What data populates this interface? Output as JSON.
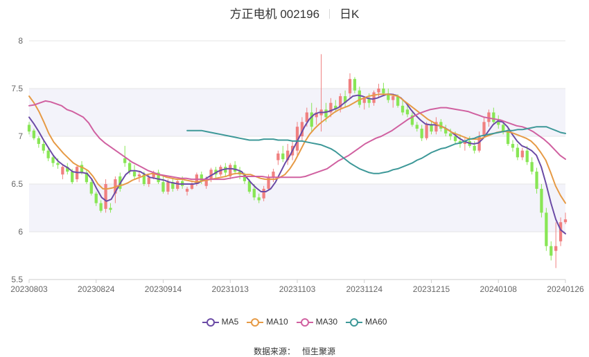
{
  "header": {
    "stock_title": "方正电机 002196",
    "period_label": "日K"
  },
  "footer": {
    "source_label": "数据来源：",
    "source_name": "恒生聚源"
  },
  "colors": {
    "up": "#f08080",
    "down": "#88e655",
    "MA5": "#6a4aa5",
    "MA10": "#e69a45",
    "MA30": "#d060a0",
    "MA60": "#3d9898",
    "band": "#f3f3fa",
    "grid": "#e6e6e6",
    "axis_text": "#666666"
  },
  "chart_data": {
    "type": "candlestick",
    "ylim": [
      5.5,
      8
    ],
    "yticks": [
      "5.5",
      "6",
      "6.5",
      "7",
      "7.5",
      "8"
    ],
    "x_tick_labels": [
      "20230803",
      "20230824",
      "20230914",
      "20231013",
      "20231103",
      "20231124",
      "20231215",
      "20240108",
      "20240126"
    ],
    "candles": [
      {
        "o": 7.12,
        "h": 7.15,
        "l": 7.02,
        "c": 7.05
      },
      {
        "o": 7.06,
        "h": 7.08,
        "l": 6.96,
        "c": 6.98
      },
      {
        "o": 6.98,
        "h": 7.0,
        "l": 6.88,
        "c": 6.92
      },
      {
        "o": 6.92,
        "h": 6.95,
        "l": 6.82,
        "c": 6.85
      },
      {
        "o": 6.85,
        "h": 6.88,
        "l": 6.74,
        "c": 6.77
      },
      {
        "o": 6.78,
        "h": 6.8,
        "l": 6.68,
        "c": 6.72
      },
      {
        "o": 6.72,
        "h": 6.77,
        "l": 6.66,
        "c": 6.7
      },
      {
        "o": 6.6,
        "h": 6.7,
        "l": 6.55,
        "c": 6.68
      },
      {
        "o": 6.68,
        "h": 6.72,
        "l": 6.6,
        "c": 6.63
      },
      {
        "o": 6.63,
        "h": 6.66,
        "l": 6.5,
        "c": 6.52
      },
      {
        "o": 6.55,
        "h": 6.7,
        "l": 6.52,
        "c": 6.68
      },
      {
        "o": 6.7,
        "h": 6.74,
        "l": 6.6,
        "c": 6.62
      },
      {
        "o": 6.62,
        "h": 6.65,
        "l": 6.5,
        "c": 6.52
      },
      {
        "o": 6.52,
        "h": 6.55,
        "l": 6.38,
        "c": 6.4
      },
      {
        "o": 6.4,
        "h": 6.42,
        "l": 6.27,
        "c": 6.3
      },
      {
        "o": 6.3,
        "h": 6.33,
        "l": 6.2,
        "c": 6.22
      },
      {
        "o": 6.24,
        "h": 6.55,
        "l": 6.2,
        "c": 6.5
      },
      {
        "o": 6.25,
        "h": 6.3,
        "l": 6.2,
        "c": 6.23
      },
      {
        "o": 6.4,
        "h": 6.58,
        "l": 6.3,
        "c": 6.55
      },
      {
        "o": 6.58,
        "h": 6.62,
        "l": 6.42,
        "c": 6.45
      },
      {
        "o": 6.77,
        "h": 6.9,
        "l": 6.68,
        "c": 6.72
      },
      {
        "o": 6.72,
        "h": 6.75,
        "l": 6.6,
        "c": 6.63
      },
      {
        "o": 6.63,
        "h": 6.7,
        "l": 6.55,
        "c": 6.58
      },
      {
        "o": 6.58,
        "h": 6.64,
        "l": 6.52,
        "c": 6.6
      },
      {
        "o": 6.6,
        "h": 6.63,
        "l": 6.48,
        "c": 6.5
      },
      {
        "o": 6.5,
        "h": 6.6,
        "l": 6.47,
        "c": 6.57
      },
      {
        "o": 6.57,
        "h": 6.64,
        "l": 6.55,
        "c": 6.62
      },
      {
        "o": 6.62,
        "h": 6.65,
        "l": 6.5,
        "c": 6.52
      },
      {
        "o": 6.52,
        "h": 6.58,
        "l": 6.4,
        "c": 6.42
      },
      {
        "o": 6.42,
        "h": 6.55,
        "l": 6.39,
        "c": 6.52
      },
      {
        "o": 6.52,
        "h": 6.56,
        "l": 6.42,
        "c": 6.45
      },
      {
        "o": 6.45,
        "h": 6.55,
        "l": 6.43,
        "c": 6.53
      },
      {
        "o": 6.53,
        "h": 6.58,
        "l": 6.45,
        "c": 6.48
      },
      {
        "o": 6.42,
        "h": 6.47,
        "l": 6.38,
        "c": 6.45
      },
      {
        "o": 6.45,
        "h": 6.52,
        "l": 6.44,
        "c": 6.5
      },
      {
        "o": 6.5,
        "h": 6.62,
        "l": 6.48,
        "c": 6.6
      },
      {
        "o": 6.6,
        "h": 6.63,
        "l": 6.5,
        "c": 6.53
      },
      {
        "o": 6.48,
        "h": 6.58,
        "l": 6.45,
        "c": 6.55
      },
      {
        "o": 6.55,
        "h": 6.67,
        "l": 6.52,
        "c": 6.65
      },
      {
        "o": 6.65,
        "h": 6.68,
        "l": 6.56,
        "c": 6.6
      },
      {
        "o": 6.6,
        "h": 6.7,
        "l": 6.58,
        "c": 6.68
      },
      {
        "o": 6.68,
        "h": 6.72,
        "l": 6.58,
        "c": 6.62
      },
      {
        "o": 6.58,
        "h": 6.72,
        "l": 6.55,
        "c": 6.7
      },
      {
        "o": 6.7,
        "h": 6.74,
        "l": 6.6,
        "c": 6.63
      },
      {
        "o": 6.63,
        "h": 6.68,
        "l": 6.55,
        "c": 6.6
      },
      {
        "o": 6.6,
        "h": 6.62,
        "l": 6.5,
        "c": 6.53
      },
      {
        "o": 6.53,
        "h": 6.55,
        "l": 6.4,
        "c": 6.42
      },
      {
        "o": 6.45,
        "h": 6.5,
        "l": 6.33,
        "c": 6.36
      },
      {
        "o": 6.36,
        "h": 6.4,
        "l": 6.3,
        "c": 6.33
      },
      {
        "o": 6.35,
        "h": 6.48,
        "l": 6.32,
        "c": 6.45
      },
      {
        "o": 6.45,
        "h": 6.6,
        "l": 6.43,
        "c": 6.57
      },
      {
        "o": 6.57,
        "h": 6.66,
        "l": 6.52,
        "c": 6.63
      },
      {
        "o": 6.75,
        "h": 6.85,
        "l": 6.7,
        "c": 6.82
      },
      {
        "o": 6.82,
        "h": 6.9,
        "l": 6.73,
        "c": 6.76
      },
      {
        "o": 6.75,
        "h": 6.92,
        "l": 6.7,
        "c": 6.85
      },
      {
        "o": 6.8,
        "h": 6.95,
        "l": 6.75,
        "c": 6.9
      },
      {
        "o": 6.85,
        "h": 7.15,
        "l": 6.8,
        "c": 7.1
      },
      {
        "o": 7.0,
        "h": 7.2,
        "l": 6.95,
        "c": 7.15
      },
      {
        "o": 7.15,
        "h": 7.3,
        "l": 7.1,
        "c": 7.25
      },
      {
        "o": 7.25,
        "h": 7.35,
        "l": 7.05,
        "c": 7.1
      },
      {
        "o": 7.2,
        "h": 7.3,
        "l": 7.12,
        "c": 7.25
      },
      {
        "o": 7.22,
        "h": 7.86,
        "l": 7.05,
        "c": 7.28
      },
      {
        "o": 7.28,
        "h": 7.35,
        "l": 7.15,
        "c": 7.2
      },
      {
        "o": 7.25,
        "h": 7.4,
        "l": 7.2,
        "c": 7.35
      },
      {
        "o": 7.32,
        "h": 7.38,
        "l": 7.25,
        "c": 7.28
      },
      {
        "o": 7.3,
        "h": 7.45,
        "l": 7.25,
        "c": 7.42
      },
      {
        "o": 7.42,
        "h": 7.48,
        "l": 7.3,
        "c": 7.35
      },
      {
        "o": 7.45,
        "h": 7.66,
        "l": 7.4,
        "c": 7.6
      },
      {
        "o": 7.6,
        "h": 7.62,
        "l": 7.45,
        "c": 7.48
      },
      {
        "o": 7.48,
        "h": 7.52,
        "l": 7.3,
        "c": 7.33
      },
      {
        "o": 7.35,
        "h": 7.42,
        "l": 7.28,
        "c": 7.4
      },
      {
        "o": 7.4,
        "h": 7.45,
        "l": 7.3,
        "c": 7.35
      },
      {
        "o": 7.35,
        "h": 7.48,
        "l": 7.32,
        "c": 7.46
      },
      {
        "o": 7.46,
        "h": 7.55,
        "l": 7.4,
        "c": 7.5
      },
      {
        "o": 7.5,
        "h": 7.56,
        "l": 7.42,
        "c": 7.45
      },
      {
        "o": 7.45,
        "h": 7.5,
        "l": 7.35,
        "c": 7.38
      },
      {
        "o": 7.38,
        "h": 7.45,
        "l": 7.3,
        "c": 7.42
      },
      {
        "o": 7.42,
        "h": 7.44,
        "l": 7.3,
        "c": 7.32
      },
      {
        "o": 7.32,
        "h": 7.38,
        "l": 7.22,
        "c": 7.25
      },
      {
        "o": 7.28,
        "h": 7.33,
        "l": 7.2,
        "c": 7.23
      },
      {
        "o": 7.22,
        "h": 7.25,
        "l": 7.1,
        "c": 7.12
      },
      {
        "o": 7.12,
        "h": 7.15,
        "l": 7.05,
        "c": 7.08
      },
      {
        "o": 7.08,
        "h": 7.12,
        "l": 6.95,
        "c": 6.98
      },
      {
        "o": 6.98,
        "h": 7.15,
        "l": 6.96,
        "c": 7.12
      },
      {
        "o": 7.12,
        "h": 7.15,
        "l": 7.02,
        "c": 7.05
      },
      {
        "o": 7.05,
        "h": 7.2,
        "l": 7.02,
        "c": 7.15
      },
      {
        "o": 7.15,
        "h": 7.18,
        "l": 7.05,
        "c": 7.08
      },
      {
        "o": 7.08,
        "h": 7.12,
        "l": 7.0,
        "c": 7.03
      },
      {
        "o": 7.03,
        "h": 7.08,
        "l": 6.96,
        "c": 7.0
      },
      {
        "o": 7.0,
        "h": 7.05,
        "l": 6.92,
        "c": 6.95
      },
      {
        "o": 6.95,
        "h": 7.02,
        "l": 6.88,
        "c": 6.92
      },
      {
        "o": 6.92,
        "h": 6.98,
        "l": 6.85,
        "c": 6.95
      },
      {
        "o": 6.95,
        "h": 7.0,
        "l": 6.88,
        "c": 6.9
      },
      {
        "o": 6.9,
        "h": 6.95,
        "l": 6.82,
        "c": 6.85
      },
      {
        "o": 6.85,
        "h": 7.05,
        "l": 6.83,
        "c": 7.0
      },
      {
        "o": 7.0,
        "h": 7.2,
        "l": 6.98,
        "c": 7.15
      },
      {
        "o": 7.15,
        "h": 7.28,
        "l": 7.1,
        "c": 7.25
      },
      {
        "o": 7.25,
        "h": 7.3,
        "l": 7.12,
        "c": 7.15
      },
      {
        "o": 7.15,
        "h": 7.22,
        "l": 7.08,
        "c": 7.12
      },
      {
        "o": 7.12,
        "h": 7.15,
        "l": 7.02,
        "c": 7.05
      },
      {
        "o": 7.05,
        "h": 7.08,
        "l": 6.9,
        "c": 6.92
      },
      {
        "o": 6.92,
        "h": 6.96,
        "l": 6.84,
        "c": 6.88
      },
      {
        "o": 6.88,
        "h": 6.92,
        "l": 6.75,
        "c": 6.78
      },
      {
        "o": 6.78,
        "h": 6.88,
        "l": 6.75,
        "c": 6.85
      },
      {
        "o": 6.85,
        "h": 6.9,
        "l": 6.7,
        "c": 6.73
      },
      {
        "o": 6.73,
        "h": 6.78,
        "l": 6.6,
        "c": 6.63
      },
      {
        "o": 6.63,
        "h": 6.67,
        "l": 6.4,
        "c": 6.45
      },
      {
        "o": 6.45,
        "h": 6.5,
        "l": 6.15,
        "c": 6.2
      },
      {
        "o": 6.2,
        "h": 6.25,
        "l": 5.8,
        "c": 5.85
      },
      {
        "o": 5.85,
        "h": 5.9,
        "l": 5.7,
        "c": 5.75
      },
      {
        "o": 5.8,
        "h": 6.1,
        "l": 5.62,
        "c": 5.85
      },
      {
        "o": 5.9,
        "h": 6.15,
        "l": 5.85,
        "c": 6.1
      },
      {
        "o": 6.1,
        "h": 6.2,
        "l": 6.08,
        "c": 6.13
      }
    ],
    "series": [
      {
        "name": "MA5",
        "values": [
          7.2,
          7.13,
          7.05,
          6.96,
          6.88,
          6.8,
          6.74,
          6.7,
          6.67,
          6.63,
          6.62,
          6.62,
          6.61,
          6.55,
          6.45,
          6.36,
          6.32,
          6.34,
          6.43,
          6.52,
          6.6,
          6.64,
          6.64,
          6.63,
          6.6,
          6.57,
          6.56,
          6.55,
          6.54,
          6.52,
          6.51,
          6.5,
          6.5,
          6.5,
          6.5,
          6.51,
          6.54,
          6.57,
          6.6,
          6.63,
          6.65,
          6.66,
          6.66,
          6.65,
          6.63,
          6.57,
          6.51,
          6.46,
          6.42,
          6.42,
          6.45,
          6.52,
          6.62,
          6.72,
          6.8,
          6.9,
          7.0,
          7.1,
          7.18,
          7.23,
          7.25,
          7.25,
          7.26,
          7.28,
          7.3,
          7.34,
          7.38,
          7.42,
          7.43,
          7.42,
          7.4,
          7.39,
          7.4,
          7.42,
          7.44,
          7.44,
          7.43,
          7.4,
          7.35,
          7.28,
          7.22,
          7.17,
          7.13,
          7.12,
          7.12,
          7.11,
          7.09,
          7.06,
          7.02,
          6.98,
          6.95,
          6.93,
          6.92,
          6.93,
          6.98,
          7.05,
          7.12,
          7.16,
          7.15,
          7.1,
          7.02,
          6.95,
          6.9,
          6.88,
          6.85,
          6.8,
          6.68,
          6.5,
          6.3,
          6.13,
          6.02,
          5.98
        ]
      },
      {
        "name": "MA10",
        "values": [
          7.42,
          7.35,
          7.26,
          7.15,
          7.03,
          6.94,
          6.88,
          6.82,
          6.77,
          6.72,
          6.69,
          6.67,
          6.64,
          6.58,
          6.5,
          6.45,
          6.45,
          6.46,
          6.48,
          6.49,
          6.51,
          6.54,
          6.56,
          6.58,
          6.6,
          6.61,
          6.6,
          6.59,
          6.57,
          6.56,
          6.55,
          6.55,
          6.54,
          6.53,
          6.52,
          6.53,
          6.54,
          6.55,
          6.56,
          6.57,
          6.58,
          6.6,
          6.61,
          6.61,
          6.6,
          6.6,
          6.58,
          6.56,
          6.55,
          6.55,
          6.55,
          6.57,
          6.6,
          6.66,
          6.74,
          6.84,
          6.94,
          7.02,
          7.08,
          7.13,
          7.17,
          7.21,
          7.25,
          7.28,
          7.3,
          7.32,
          7.35,
          7.38,
          7.4,
          7.42,
          7.43,
          7.44,
          7.44,
          7.44,
          7.43,
          7.42,
          7.38,
          7.34,
          7.3,
          7.26,
          7.22,
          7.18,
          7.15,
          7.12,
          7.1,
          7.07,
          7.04,
          7.02,
          7.0,
          6.98,
          6.97,
          6.97,
          6.98,
          7.0,
          7.02,
          7.04,
          7.05,
          7.05,
          7.04,
          7.02,
          7.0,
          6.98,
          6.95,
          6.9,
          6.83,
          6.75,
          6.62,
          6.48,
          6.38,
          6.3
        ]
      },
      {
        "name": "MA30",
        "values": [
          7.32,
          7.33,
          7.35,
          7.37,
          7.36,
          7.34,
          7.32,
          7.28,
          7.26,
          7.23,
          7.2,
          7.14,
          7.05,
          6.98,
          6.93,
          6.89,
          6.85,
          6.81,
          6.77,
          6.73,
          6.7,
          6.67,
          6.64,
          6.62,
          6.6,
          6.59,
          6.58,
          6.57,
          6.56,
          6.56,
          6.55,
          6.55,
          6.55,
          6.55,
          6.55,
          6.55,
          6.55,
          6.56,
          6.57,
          6.58,
          6.58,
          6.58,
          6.58,
          6.58,
          6.57,
          6.57,
          6.57,
          6.57,
          6.57,
          6.57,
          6.57,
          6.58,
          6.6,
          6.62,
          6.64,
          6.66,
          6.7,
          6.74,
          6.77,
          6.8,
          6.84,
          6.88,
          6.92,
          6.95,
          6.98,
          7.0,
          7.03,
          7.06,
          7.1,
          7.14,
          7.18,
          7.21,
          7.24,
          7.26,
          7.28,
          7.29,
          7.3,
          7.3,
          7.29,
          7.28,
          7.27,
          7.26,
          7.24,
          7.22,
          7.2,
          7.19,
          7.18,
          7.17,
          7.15,
          7.13,
          7.11,
          7.1,
          7.08,
          7.05,
          7.01,
          6.97,
          6.92,
          6.86,
          6.8,
          6.76
        ]
      },
      {
        "name": "MA60",
        "values": [
          7.06,
          7.06,
          7.06,
          7.06,
          7.05,
          7.04,
          7.03,
          7.02,
          7.01,
          7.0,
          6.99,
          6.98,
          6.97,
          6.96,
          6.96,
          6.96,
          6.97,
          6.97,
          6.97,
          6.96,
          6.96,
          6.96,
          6.95,
          6.95,
          6.95,
          6.94,
          6.93,
          6.92,
          6.91,
          6.89,
          6.87,
          6.84,
          6.8,
          6.76,
          6.72,
          6.69,
          6.66,
          6.64,
          6.62,
          6.61,
          6.61,
          6.62,
          6.63,
          6.65,
          6.66,
          6.68,
          6.7,
          6.72,
          6.75,
          6.77,
          6.8,
          6.83,
          6.85,
          6.87,
          6.88,
          6.9,
          6.92,
          6.93,
          6.95,
          6.97,
          6.98,
          7.0,
          7.01,
          7.02,
          7.03,
          7.04,
          7.05,
          7.06,
          7.06,
          7.07,
          7.07,
          7.08,
          7.09,
          7.1,
          7.1,
          7.1,
          7.08,
          7.06,
          7.04,
          7.03
        ]
      }
    ],
    "ma_start_index": {
      "MA5": 0,
      "MA10": 0,
      "MA30": 0,
      "MA60": 33
    }
  }
}
